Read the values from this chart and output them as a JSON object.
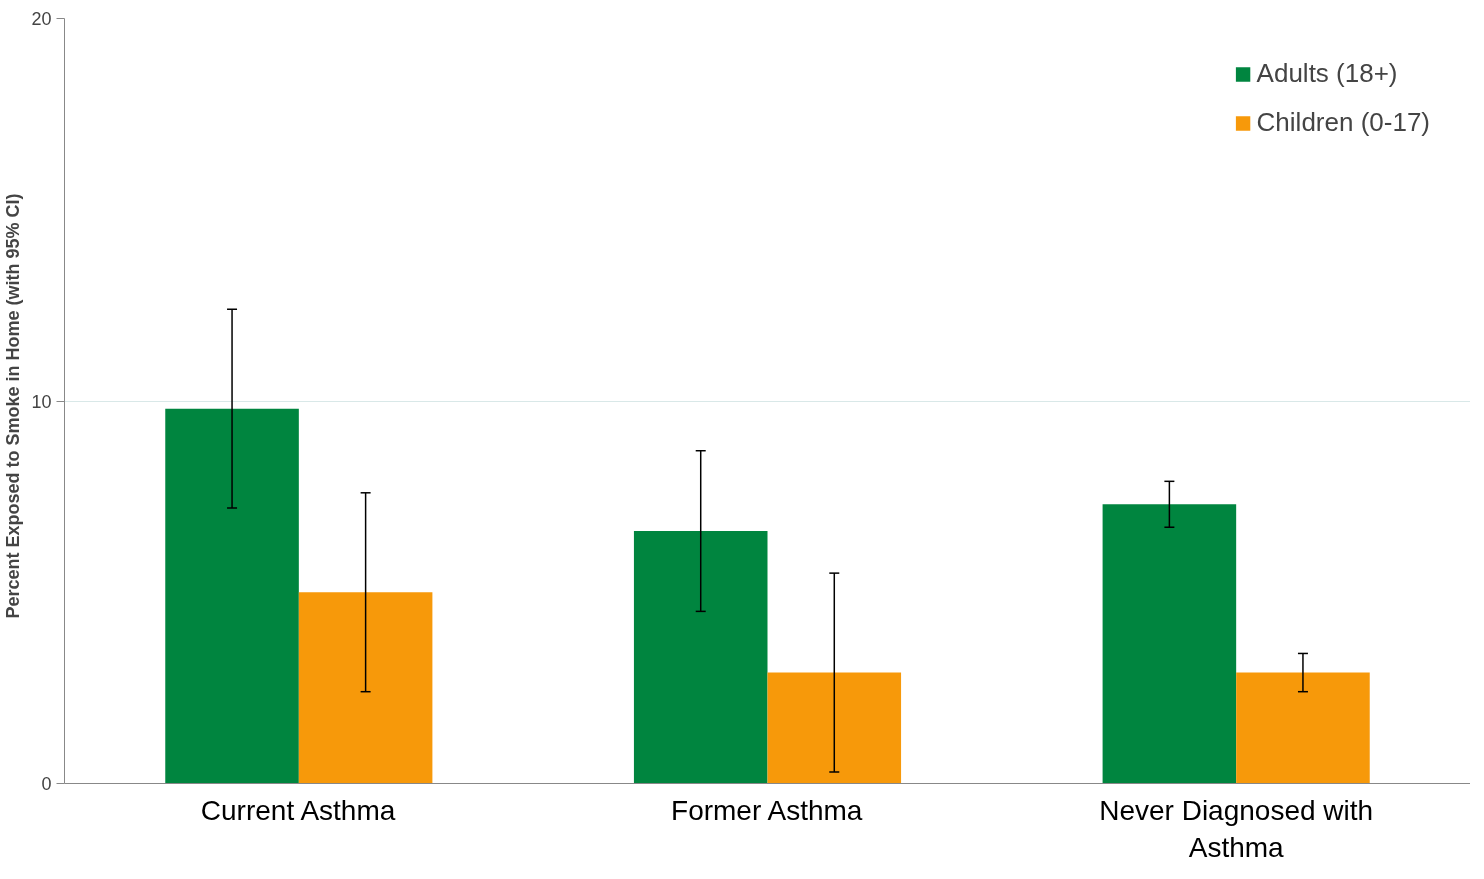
{
  "chart_data": {
    "type": "bar",
    "ylabel": "Percent  Exposed to Smoke in Home  (with 95% CI)",
    "categories": [
      "Current Asthma",
      "Former Asthma",
      "Never Diagnosed with Asthma"
    ],
    "series": [
      {
        "name": "Adults (18+)",
        "color": "#00853f",
        "values": [
          9.8,
          6.6,
          7.3
        ],
        "errors": [
          [
            7.2,
            12.4
          ],
          [
            4.5,
            8.7
          ],
          [
            6.7,
            7.9
          ]
        ]
      },
      {
        "name": "Children (0-17)",
        "color": "#f7990a",
        "values": [
          5.0,
          2.9,
          2.9
        ],
        "errors": [
          [
            2.4,
            7.6
          ],
          [
            0.3,
            5.5
          ],
          [
            2.4,
            3.4
          ]
        ]
      }
    ],
    "ylim": [
      0,
      20
    ],
    "yticks": [
      0,
      10,
      20
    ],
    "grid": "y",
    "legend": "top right"
  }
}
